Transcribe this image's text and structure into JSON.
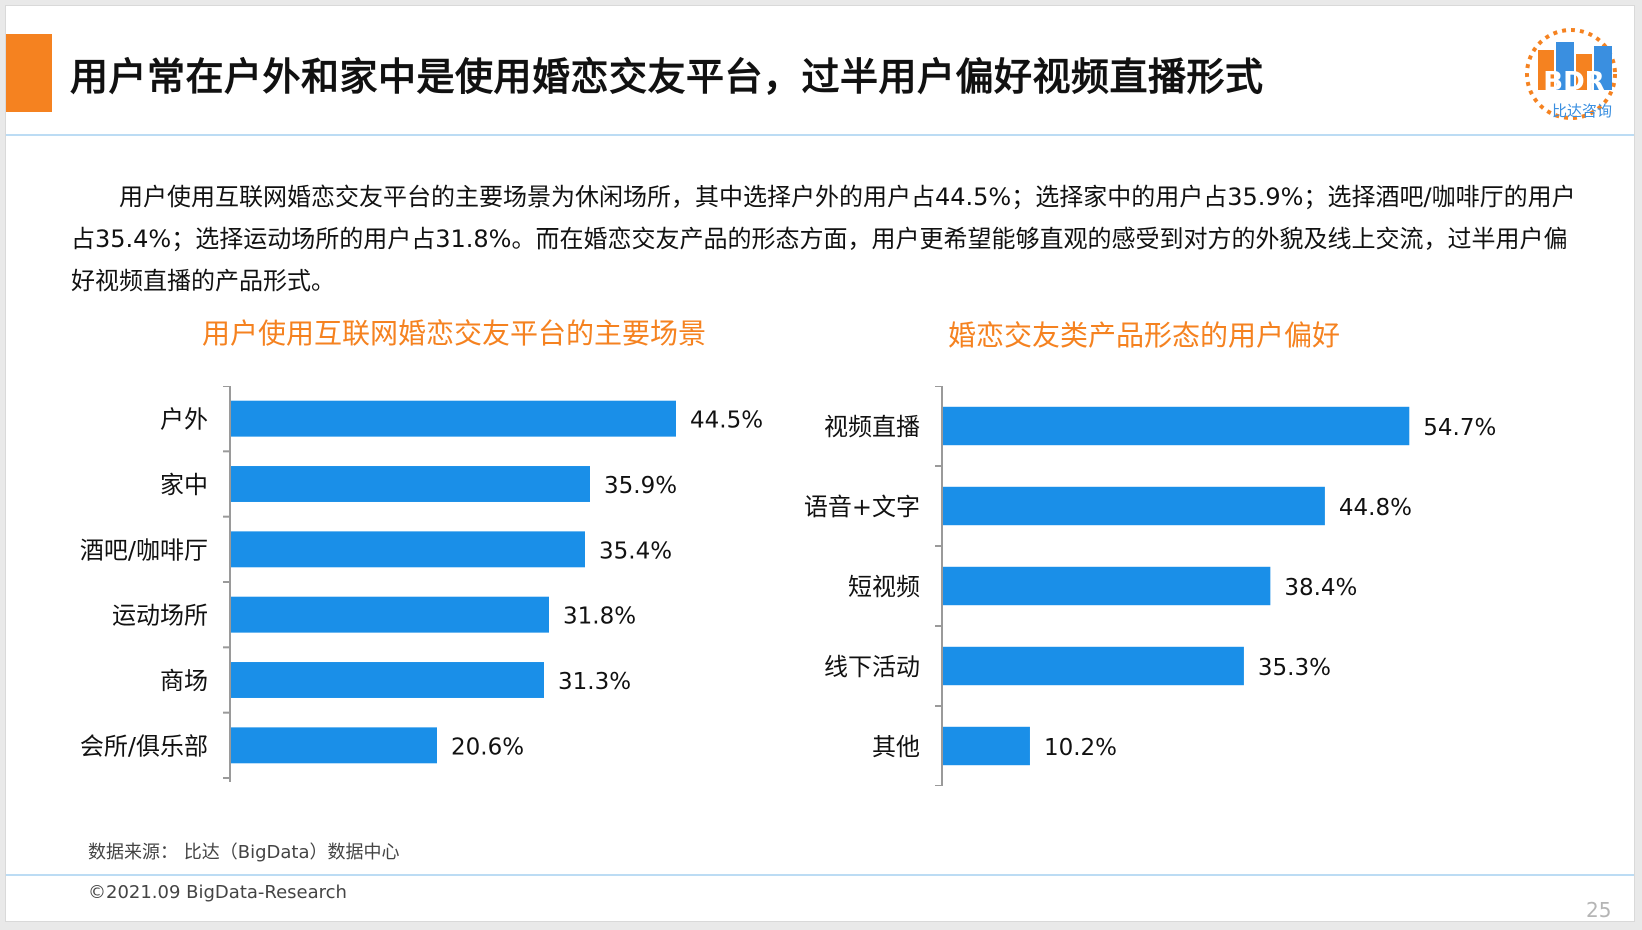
{
  "slide": {
    "title": "用户常在户外和家中是使用婚恋交友平台，过半用户偏好视频直播形式",
    "intro": "用户使用互联网婚恋交友平台的主要场景为休闲场所，其中选择户外的用户占44.5%；选择家中的用户占35.9%；选择酒吧/咖啡厅的用户占35.4%；选择运动场所的用户占31.8%。而在婚恋交友产品的形态方面，用户更希望能够直观的感受到对方的外貌及线上交流，过半用户偏好视频直播的产品形式。",
    "source": "数据来源： 比达（BigData）数据中心",
    "copyright": "©2021.09 BigData-Research",
    "page_number": "25",
    "logo": {
      "text": "BDR",
      "subtitle": "比达咨询",
      "icon": "bdr-logo-icon"
    },
    "colors": {
      "accent": "#f58220",
      "bar": "#1a8fe8",
      "rule": "#bcdcf4"
    }
  },
  "chart_data": [
    {
      "type": "bar",
      "orientation": "horizontal",
      "title": "用户使用互联网婚恋交友平台的主要场景",
      "categories": [
        "户外",
        "家中",
        "酒吧/咖啡厅",
        "运动场所",
        "商场",
        "会所/俱乐部"
      ],
      "values": [
        44.5,
        35.9,
        35.4,
        31.8,
        31.3,
        20.6
      ],
      "value_labels": [
        "44.5%",
        "35.9%",
        "35.4%",
        "31.8%",
        "31.3%",
        "20.6%"
      ],
      "unit": "%",
      "xlim": [
        0,
        55
      ]
    },
    {
      "type": "bar",
      "orientation": "horizontal",
      "title": "婚恋交友类产品形态的用户偏好",
      "categories": [
        "视频直播",
        "语音+文字",
        "短视频",
        "线下活动",
        "其他"
      ],
      "values": [
        54.7,
        44.8,
        38.4,
        35.3,
        10.2
      ],
      "value_labels": [
        "54.7%",
        "44.8%",
        "38.4%",
        "35.3%",
        "10.2%"
      ],
      "unit": "%",
      "xlim": [
        0,
        61
      ]
    }
  ]
}
